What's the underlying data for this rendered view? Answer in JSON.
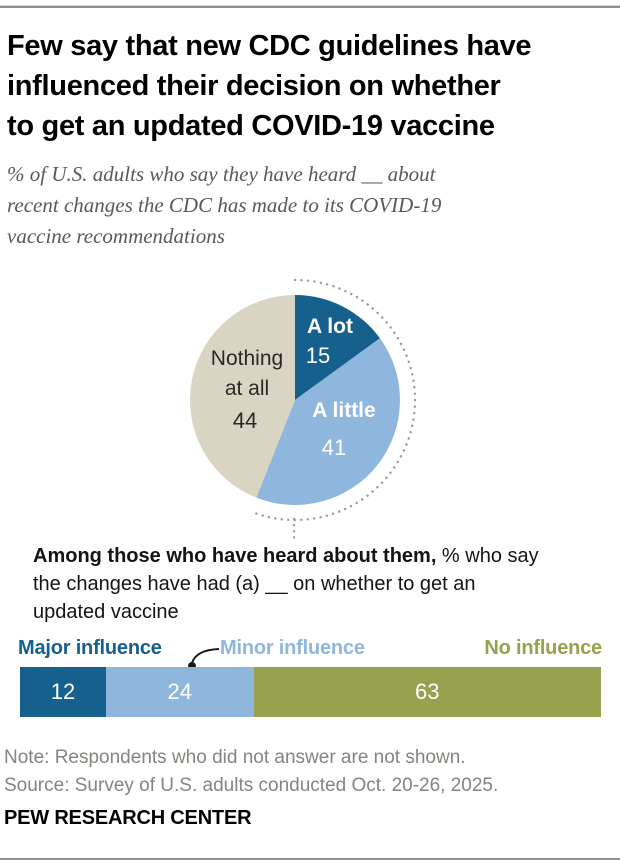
{
  "header": {
    "title_lines": [
      "Few say that new CDC guidelines have",
      "influenced their decision on whether",
      "to get an updated COVID-19 vaccine"
    ],
    "subtitle_lines": [
      "% of U.S. adults who say they have heard __ about",
      "recent changes the CDC has made to its COVID-19",
      "vaccine recommendations"
    ]
  },
  "chart_data": [
    {
      "type": "pie",
      "question": "% of U.S. adults who say they have heard __ about recent changes the CDC has made to its COVID-19 vaccine recommendations",
      "slices": [
        {
          "label": "A lot",
          "value": 15,
          "color": "#15608D"
        },
        {
          "label": "A little",
          "value": 41,
          "color": "#8FB7DE"
        },
        {
          "label": "Nothing at all",
          "label_lines": [
            "Nothing",
            "at all"
          ],
          "value": 44,
          "color": "#D9D5C2"
        }
      ],
      "start_angle_deg": 0,
      "dotted_arc": {
        "covers": [
          "A lot",
          "A little"
        ],
        "color": "#9B9B9B"
      }
    },
    {
      "type": "bar",
      "stacked": true,
      "orientation": "horizontal",
      "question": {
        "lead_bold": "Among those who have heard about them,",
        "line1_rest": " % who say",
        "line2": "the changes have had (a) __ on whether to get an",
        "line3": "updated vaccine"
      },
      "segments": [
        {
          "label": "Major influence",
          "value": 12,
          "color": "#15608D"
        },
        {
          "label": "Minor influence",
          "value": 24,
          "color": "#8FB7DE"
        },
        {
          "label": "No influence",
          "value": 63,
          "color": "#97A14E"
        }
      ],
      "xlim": [
        0,
        99
      ]
    }
  ],
  "footer": {
    "note": "Note: Respondents who did not answer are not shown.",
    "source": "Source: Survey of U.S. adults conducted Oct. 20-26, 2025.",
    "brand": "PEW RESEARCH CENTER"
  }
}
